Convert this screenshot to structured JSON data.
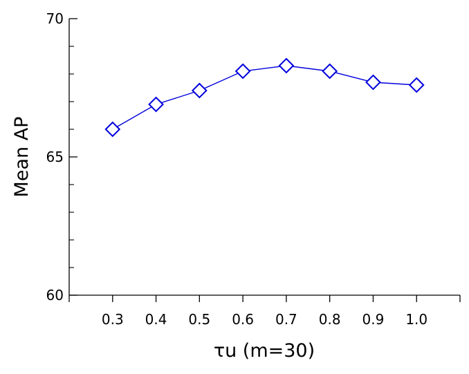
{
  "chart_data": {
    "type": "line",
    "title": "",
    "xlabel": "τu (m=30)",
    "ylabel": "Mean AP",
    "x": [
      0.3,
      0.4,
      0.5,
      0.6,
      0.7,
      0.8,
      0.9,
      1.0
    ],
    "x_tick_labels": [
      "0.3",
      "0.4",
      "0.5",
      "0.6",
      "0.7",
      "0.8",
      "0.9",
      "1.0"
    ],
    "xlim": [
      0.2,
      1.1
    ],
    "ylim": [
      60,
      70
    ],
    "y_ticks": [
      60,
      65,
      70
    ],
    "y_tick_labels": [
      "60",
      "65",
      "70"
    ],
    "y_minor_ticks": [
      61,
      62,
      63,
      64,
      66,
      67,
      68,
      69
    ],
    "grid": false,
    "series": [
      {
        "values": [
          66.0,
          66.9,
          67.4,
          68.1,
          68.3,
          68.1,
          67.7,
          67.6
        ],
        "color": "#0000dd",
        "marker": "diamond-open"
      }
    ]
  }
}
